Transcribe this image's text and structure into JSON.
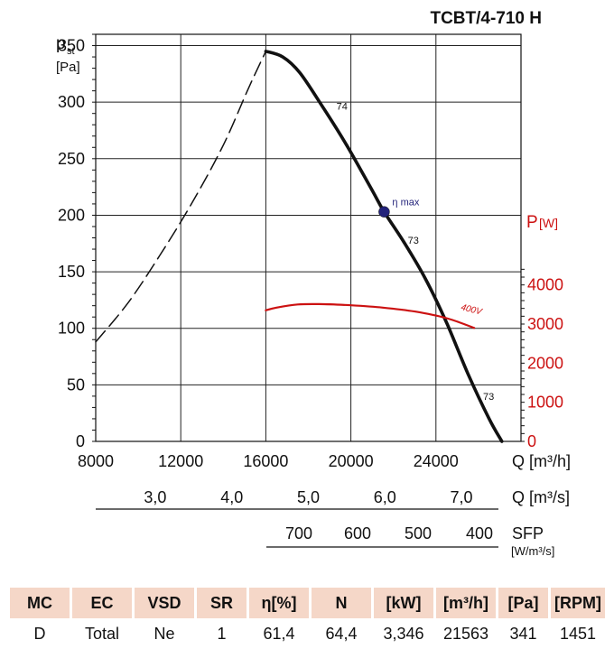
{
  "title": "TCBT/4-710 H",
  "chart_data": {
    "type": "line",
    "title": "TCBT/4-710 H",
    "xlabel": "Q [m³/h]",
    "ylabel_main": "p",
    "ylabel_sub": "st",
    "ylabel_unit": "[Pa]",
    "y2label": "P",
    "y2label_unit": "[W]",
    "xlim": [
      8000,
      28000
    ],
    "ylim": [
      0,
      360
    ],
    "y2lim": [
      0,
      5000
    ],
    "x_ticks": [
      "8000",
      "12000",
      "16000",
      "20000",
      "24000"
    ],
    "x_tick_values": [
      8000,
      12000,
      16000,
      20000,
      24000
    ],
    "y_ticks": [
      "0",
      "50",
      "100",
      "150",
      "200",
      "250",
      "300",
      "350"
    ],
    "y_tick_values": [
      0,
      50,
      100,
      150,
      200,
      250,
      300,
      350
    ],
    "y2_ticks": [
      "0",
      "1000",
      "2000",
      "3000",
      "4000"
    ],
    "y2_tick_values": [
      0,
      1000,
      2000,
      3000,
      4000
    ],
    "grid": true,
    "series": [
      {
        "name": "",
        "style": "dashed",
        "color": "#111111",
        "x": [
          8000,
          9500,
          11000,
          12500,
          14000,
          15200,
          16000
        ],
        "y": [
          88,
          122,
          164,
          210,
          262,
          313,
          345
        ]
      },
      {
        "name": "",
        "style": "solid",
        "color": "#111111",
        "x": [
          16000,
          16800,
          17600,
          18600,
          19800,
          21000,
          21563,
          22500,
          23500,
          24500,
          25500,
          26500,
          27100
        ],
        "y": [
          345,
          340,
          326,
          298,
          262,
          222,
          203,
          176,
          144,
          105,
          60,
          20,
          0
        ]
      },
      {
        "name": "400V",
        "style": "solid",
        "color": "#cc1111",
        "axis": "y2",
        "x": [
          16000,
          16500,
          17500,
          18500,
          20000,
          21500,
          23000,
          24500,
          25800
        ],
        "y": [
          3350,
          3420,
          3500,
          3510,
          3480,
          3420,
          3320,
          3150,
          2900
        ]
      }
    ],
    "annotations": [
      {
        "text": "74",
        "x": 20000,
        "y": 295
      },
      {
        "text": "η max",
        "x": 21563,
        "y": 203,
        "marker": true
      },
      {
        "text": "73",
        "x": 23100,
        "y": 170
      },
      {
        "text": "73",
        "x": 26300,
        "y": 36
      },
      {
        "text": "400V",
        "x": 24800,
        "y2": 3200
      }
    ],
    "secondary_axes": [
      {
        "label": "Q [m³/s]",
        "ticks": [
          "3,0",
          "4,0",
          "5,0",
          "6,0",
          "7,0"
        ],
        "values": [
          3.0,
          4.0,
          5.0,
          6.0,
          7.0
        ]
      },
      {
        "label": "SFP",
        "unit": "[W/m³/s]",
        "ticks": [
          "700",
          "600",
          "500",
          "400"
        ],
        "values": [
          700,
          600,
          500,
          400
        ]
      }
    ]
  },
  "table": {
    "headers": [
      "MC",
      "EC",
      "VSD",
      "SR",
      "η[%]",
      "N",
      "[kW]",
      "[m³/h]",
      "[Pa]",
      "[RPM]"
    ],
    "row": [
      "D",
      "Total",
      "Ne",
      "1",
      "61,4",
      "64,4",
      "3,346",
      "21563",
      "341",
      "1451"
    ]
  }
}
